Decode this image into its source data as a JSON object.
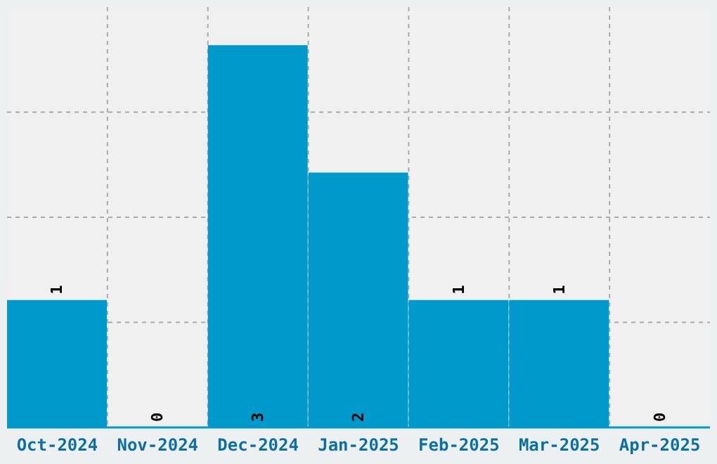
{
  "chart_data": {
    "type": "bar",
    "categories": [
      "Oct-2024",
      "Nov-2024",
      "Dec-2024",
      "Jan-2025",
      "Feb-2025",
      "Mar-2025",
      "Apr-2025"
    ],
    "values": [
      1,
      0,
      3,
      2,
      1,
      1,
      0
    ],
    "color": "#0099cc",
    "ylim": [
      0,
      3.3
    ],
    "tick_labels": "x",
    "grid": true,
    "data_labels": true
  }
}
